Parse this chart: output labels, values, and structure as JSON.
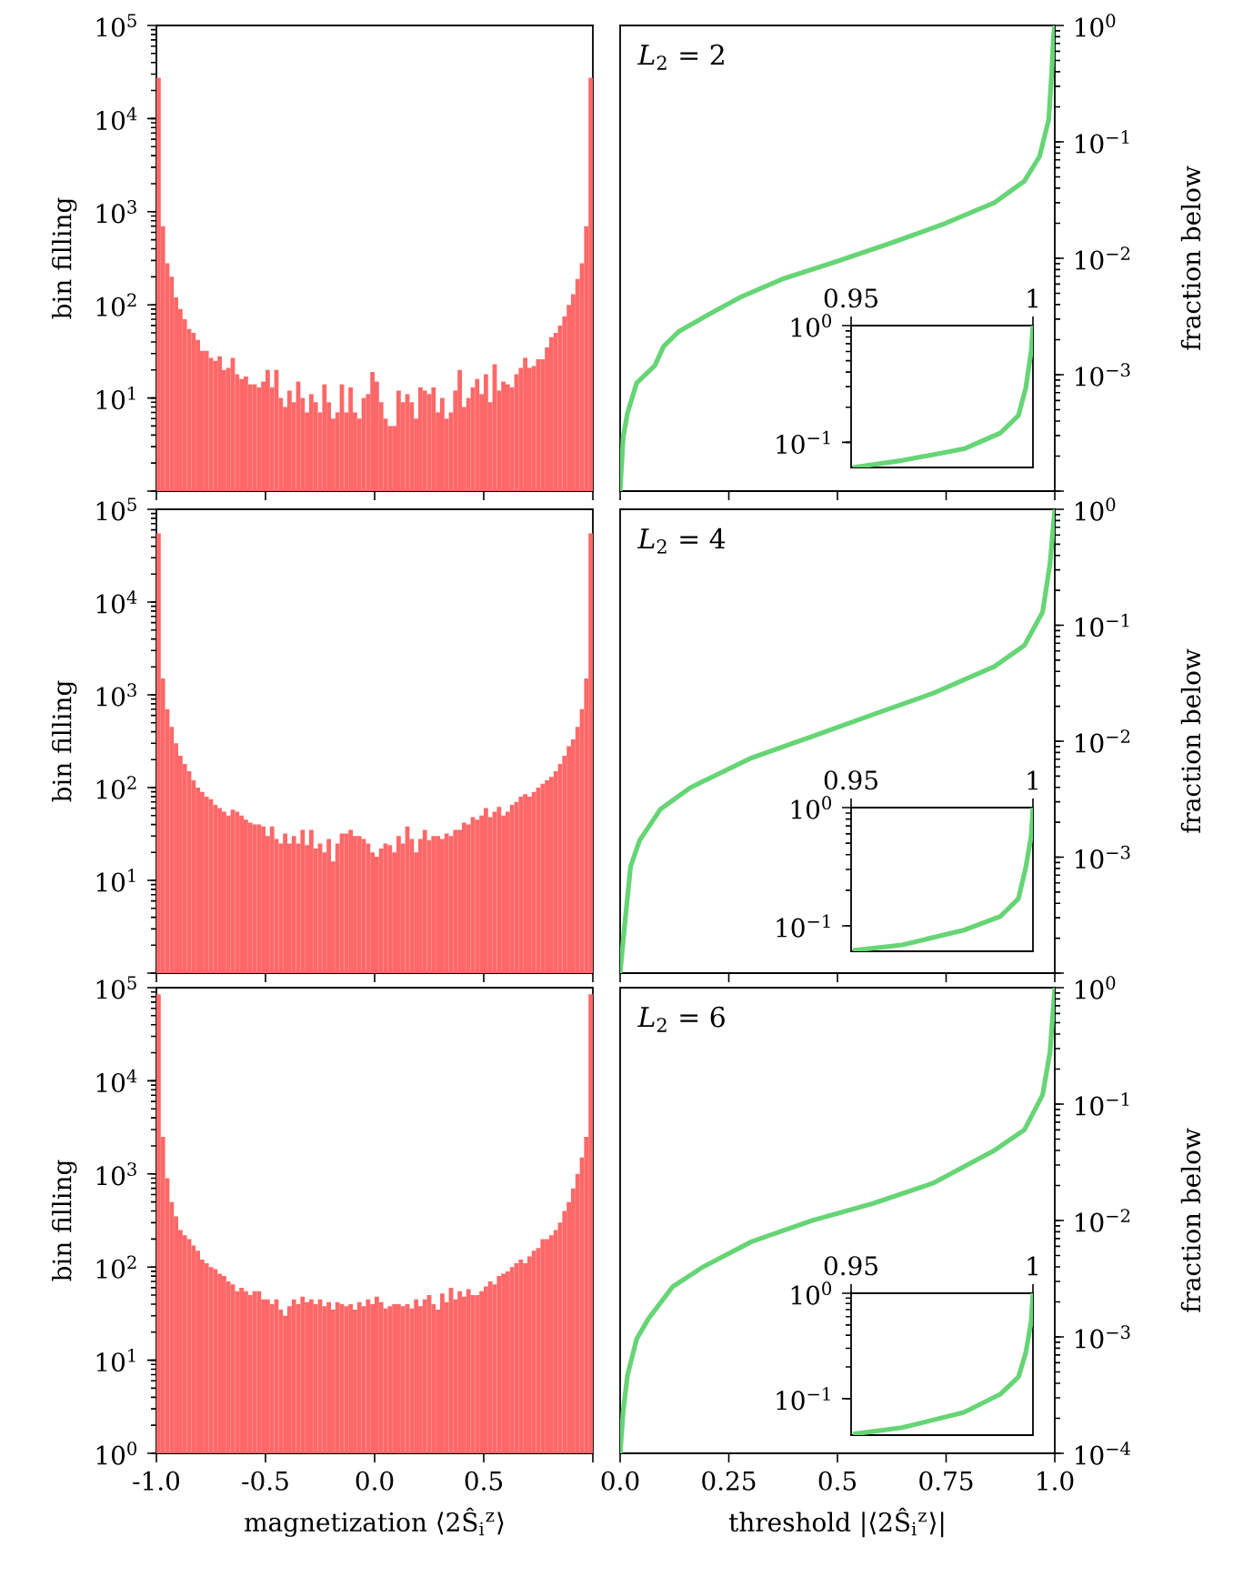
{
  "chart_data": [
    {
      "type": "histogram",
      "ylabel": "bin filling",
      "log": "y",
      "xlim": [
        -1.0,
        1.0
      ],
      "ylim": [
        1,
        100000
      ],
      "tick_labels": "y",
      "color": "#ff6868",
      "xticks": [
        {
          "value": -1.0,
          "label": null
        },
        {
          "value": -0.5,
          "label": null
        },
        {
          "value": 0,
          "label": null
        },
        {
          "value": 0.5,
          "label": null
        },
        {
          "value": 1.0,
          "label": null
        }
      ],
      "yticks": [
        {
          "value": 1,
          "label": null
        },
        {
          "value": 10,
          "label": "10$^{1}$"
        },
        {
          "value": 100,
          "label": "10$^{2}$"
        },
        {
          "value": 1000,
          "label": "10$^{3}$"
        },
        {
          "value": 10000,
          "label": "10$^{4}$"
        },
        {
          "value": 100000,
          "label": "10$^{5}$"
        }
      ],
      "bins": [
        -1.0,
        -0.98,
        -0.96,
        -0.94,
        -0.92,
        -0.9,
        -0.88,
        -0.86,
        -0.84,
        -0.82,
        -0.8,
        -0.78,
        -0.76,
        -0.74,
        -0.72,
        -0.7,
        -0.68,
        -0.66,
        -0.64,
        -0.62,
        -0.6,
        -0.58,
        -0.56,
        -0.54,
        -0.52,
        -0.5,
        -0.48,
        -0.46,
        -0.44,
        -0.42,
        -0.4,
        -0.38,
        -0.36,
        -0.34,
        -0.32,
        -0.3,
        -0.28,
        -0.26,
        -0.24,
        -0.22,
        -0.2,
        -0.18,
        -0.16,
        -0.14,
        -0.12,
        -0.1,
        -0.08,
        -0.06,
        -0.04,
        -0.02,
        0,
        0.02,
        0.04,
        0.06,
        0.08,
        0.1,
        0.12,
        0.14,
        0.16,
        0.18,
        0.2,
        0.22,
        0.24,
        0.26,
        0.28,
        0.3,
        0.32,
        0.34,
        0.36,
        0.38,
        0.4,
        0.42,
        0.44,
        0.46,
        0.48,
        0.5,
        0.52,
        0.54,
        0.56,
        0.58,
        0.6,
        0.62,
        0.64,
        0.66,
        0.68,
        0.7,
        0.72,
        0.74,
        0.76,
        0.78,
        0.8,
        0.82,
        0.84,
        0.86,
        0.88,
        0.9,
        0.92,
        0.94,
        0.96,
        0.98,
        1.0
      ],
      "values": [
        27500,
        700,
        280,
        200,
        120,
        90,
        70,
        55,
        50,
        42,
        32,
        32,
        27,
        25,
        28,
        20,
        21,
        27,
        18,
        16,
        17,
        14,
        14,
        13,
        15,
        20,
        13,
        20,
        10,
        8,
        12,
        9,
        15,
        10,
        7,
        11,
        9,
        7,
        14,
        9,
        6,
        7,
        14,
        7,
        13,
        7,
        6,
        10,
        11,
        19,
        15,
        9,
        6,
        5,
        5,
        12,
        9,
        11,
        9,
        6,
        13,
        12,
        11,
        13,
        7,
        10,
        6,
        7,
        12,
        20,
        8,
        10,
        13,
        16,
        11,
        18,
        9,
        23,
        12,
        15,
        14,
        13,
        18,
        21,
        27,
        21,
        22,
        26,
        26,
        35,
        45,
        50,
        60,
        75,
        100,
        130,
        190,
        280,
        700,
        27500
      ]
    },
    {
      "type": "line",
      "ylabel": "fraction below",
      "log": "y",
      "xlim": [
        0,
        1
      ],
      "ylim": [
        0.0001,
        1
      ],
      "tick_labels": "y",
      "annotations": [
        "*L*$_{2}$ = 2"
      ],
      "xticks": [
        {
          "value": 0,
          "label": null
        },
        {
          "value": 0.25,
          "label": null
        },
        {
          "value": 0.5,
          "label": null
        },
        {
          "value": 0.75,
          "label": null
        },
        {
          "value": 1,
          "label": null
        }
      ],
      "yticks": [
        {
          "value": 0.0001,
          "label": null
        },
        {
          "value": 0.001,
          "label": "10$^{−3}$"
        },
        {
          "value": 0.01,
          "label": "10$^{−2}$"
        },
        {
          "value": 0.1,
          "label": "10$^{−1}$"
        },
        {
          "value": 1,
          "label": "10$^{0}$"
        }
      ],
      "series": [
        {
          "color": "#66d575",
          "x": [
            0,
            0.007,
            0.017,
            0.038,
            0.08,
            0.1,
            0.135,
            0.198,
            0.275,
            0.372,
            0.498,
            0.623,
            0.749,
            0.861,
            0.93,
            0.965,
            0.986,
            0.993,
            0.997,
            1
          ],
          "values": [
            0.0001,
            0.00029,
            0.00047,
            0.00085,
            0.0012,
            0.00175,
            0.00235,
            0.0032,
            0.0046,
            0.0066,
            0.0094,
            0.0135,
            0.02,
            0.03,
            0.046,
            0.075,
            0.155,
            0.4,
            0.8,
            1
          ]
        }
      ]
    },
    {
      "type": "line",
      "log": "y",
      "xlim": [
        0.95,
        1
      ],
      "ylim": [
        0.061,
        1
      ],
      "xticks": [
        0.95,
        1
      ],
      "yticks": [
        {
          "value": 0.1,
          "label": "10$^{−1}$"
        },
        {
          "value": 1,
          "label": "10$^{0}$"
        }
      ],
      "series": [
        {
          "color": "#66d575",
          "x": [
            0.9505,
            0.964,
            0.981,
            0.991,
            0.996,
            0.998,
            0.9995,
            1
          ],
          "values": [
            0.061,
            0.07,
            0.088,
            0.12,
            0.17,
            0.29,
            0.6,
            1
          ]
        }
      ]
    },
    {
      "type": "histogram",
      "ylabel": "bin filling",
      "log": "y",
      "xlim": [
        -1.0,
        1.0
      ],
      "ylim": [
        1,
        100000
      ],
      "tick_labels": "y",
      "color": "#ff6868",
      "xticks": [
        {
          "value": -1.0,
          "label": null
        },
        {
          "value": -0.5,
          "label": null
        },
        {
          "value": 0,
          "label": null
        },
        {
          "value": 0.5,
          "label": null
        },
        {
          "value": 1.0,
          "label": null
        }
      ],
      "yticks": [
        {
          "value": 1,
          "label": null
        },
        {
          "value": 10,
          "label": "10$^{1}$"
        },
        {
          "value": 100,
          "label": "10$^{2}$"
        },
        {
          "value": 1000,
          "label": "10$^{3}$"
        },
        {
          "value": 10000,
          "label": "10$^{4}$"
        },
        {
          "value": 100000,
          "label": "10$^{5}$"
        }
      ],
      "bins": [
        -1.0,
        -0.98,
        -0.96,
        -0.94,
        -0.92,
        -0.9,
        -0.88,
        -0.86,
        -0.84,
        -0.82,
        -0.8,
        -0.78,
        -0.76,
        -0.74,
        -0.72,
        -0.7,
        -0.68,
        -0.66,
        -0.64,
        -0.62,
        -0.6,
        -0.58,
        -0.56,
        -0.54,
        -0.52,
        -0.5,
        -0.48,
        -0.46,
        -0.44,
        -0.42,
        -0.4,
        -0.38,
        -0.36,
        -0.34,
        -0.32,
        -0.3,
        -0.28,
        -0.26,
        -0.24,
        -0.22,
        -0.2,
        -0.18,
        -0.16,
        -0.14,
        -0.12,
        -0.1,
        -0.08,
        -0.06,
        -0.04,
        -0.02,
        0,
        0.02,
        0.04,
        0.06,
        0.08,
        0.1,
        0.12,
        0.14,
        0.16,
        0.18,
        0.2,
        0.22,
        0.24,
        0.26,
        0.28,
        0.3,
        0.32,
        0.34,
        0.36,
        0.38,
        0.4,
        0.42,
        0.44,
        0.46,
        0.48,
        0.5,
        0.52,
        0.54,
        0.56,
        0.58,
        0.6,
        0.62,
        0.64,
        0.66,
        0.68,
        0.7,
        0.72,
        0.74,
        0.76,
        0.78,
        0.8,
        0.82,
        0.84,
        0.86,
        0.88,
        0.9,
        0.92,
        0.94,
        0.96,
        0.98,
        1.0
      ],
      "values": [
        55000,
        1500,
        700,
        450,
        300,
        220,
        180,
        150,
        120,
        100,
        90,
        80,
        75,
        65,
        60,
        55,
        50,
        58,
        55,
        50,
        45,
        42,
        40,
        40,
        38,
        30,
        38,
        28,
        25,
        32,
        25,
        30,
        25,
        35,
        24,
        35,
        22,
        25,
        20,
        28,
        16,
        25,
        32,
        32,
        35,
        30,
        30,
        28,
        25,
        20,
        18,
        22,
        25,
        24,
        20,
        30,
        25,
        38,
        28,
        20,
        28,
        35,
        27,
        30,
        30,
        28,
        32,
        30,
        35,
        35,
        42,
        40,
        48,
        45,
        50,
        60,
        48,
        55,
        62,
        50,
        55,
        65,
        70,
        80,
        85,
        80,
        90,
        100,
        110,
        120,
        130,
        150,
        180,
        220,
        280,
        330,
        450,
        700,
        1500,
        55000
      ]
    },
    {
      "type": "line",
      "ylabel": "fraction below",
      "log": "y",
      "xlim": [
        0,
        1
      ],
      "ylim": [
        0.0001,
        1
      ],
      "tick_labels": "y",
      "annotations": [
        "*L*$_{2}$ = 4"
      ],
      "xticks": [
        {
          "value": 0,
          "label": null
        },
        {
          "value": 0.25,
          "label": null
        },
        {
          "value": 0.5,
          "label": null
        },
        {
          "value": 0.75,
          "label": null
        },
        {
          "value": 1,
          "label": null
        }
      ],
      "yticks": [
        {
          "value": 0.0001,
          "label": null
        },
        {
          "value": 0.001,
          "label": "10$^{−3}$"
        },
        {
          "value": 0.01,
          "label": "10$^{−2}$"
        },
        {
          "value": 0.1,
          "label": "10$^{−1}$"
        },
        {
          "value": 1,
          "label": "10$^{0}$"
        }
      ],
      "series": [
        {
          "color": "#66d575",
          "x": [
            0,
            0.01,
            0.024,
            0.045,
            0.093,
            0.163,
            0.303,
            0.442,
            0.582,
            0.721,
            0.861,
            0.93,
            0.972,
            0.989,
            1
          ],
          "values": [
            0.0001,
            0.00025,
            0.00083,
            0.0014,
            0.0026,
            0.004,
            0.0072,
            0.011,
            0.017,
            0.026,
            0.044,
            0.067,
            0.13,
            0.34,
            1
          ]
        }
      ]
    },
    {
      "type": "line",
      "log": "y",
      "xlim": [
        0.95,
        1
      ],
      "ylim": [
        0.061,
        1
      ],
      "xticks": [
        0.95,
        1
      ],
      "yticks": [
        {
          "value": 0.1,
          "label": "10$^{−1}$"
        },
        {
          "value": 1,
          "label": "10$^{0}$"
        }
      ],
      "series": [
        {
          "color": "#66d575",
          "x": [
            0.9505,
            0.964,
            0.981,
            0.991,
            0.996,
            0.998,
            0.9995,
            1
          ],
          "values": [
            0.062,
            0.069,
            0.092,
            0.12,
            0.17,
            0.31,
            0.57,
            1
          ]
        }
      ]
    },
    {
      "type": "histogram",
      "ylabel": "bin filling",
      "xlabel": "magnetization ⟨2Ŝ$_{i}$$^{z}$⟩",
      "log": "y",
      "xlim": [
        -1.0,
        1.0
      ],
      "ylim": [
        1,
        100000
      ],
      "color": "#ff6868",
      "xticks": [
        {
          "value": -1.0,
          "label": "-1.0"
        },
        -0.5,
        {
          "value": 0,
          "label": "0.0"
        },
        0.5,
        {
          "value": 1.0,
          "label": null
        }
      ],
      "yticks": [
        {
          "value": 1,
          "label": "10$^{0}$"
        },
        {
          "value": 10,
          "label": "10$^{1}$"
        },
        {
          "value": 100,
          "label": "10$^{2}$"
        },
        {
          "value": 1000,
          "label": "10$^{3}$"
        },
        {
          "value": 10000,
          "label": "10$^{4}$"
        },
        {
          "value": 100000,
          "label": "10$^{5}$"
        }
      ],
      "bins": [
        -1.0,
        -0.98,
        -0.96,
        -0.94,
        -0.92,
        -0.9,
        -0.88,
        -0.86,
        -0.84,
        -0.82,
        -0.8,
        -0.78,
        -0.76,
        -0.74,
        -0.72,
        -0.7,
        -0.68,
        -0.66,
        -0.64,
        -0.62,
        -0.6,
        -0.58,
        -0.56,
        -0.54,
        -0.52,
        -0.5,
        -0.48,
        -0.46,
        -0.44,
        -0.42,
        -0.4,
        -0.38,
        -0.36,
        -0.34,
        -0.32,
        -0.3,
        -0.28,
        -0.26,
        -0.24,
        -0.22,
        -0.2,
        -0.18,
        -0.16,
        -0.14,
        -0.12,
        -0.1,
        -0.08,
        -0.06,
        -0.04,
        -0.02,
        0,
        0.02,
        0.04,
        0.06,
        0.08,
        0.1,
        0.12,
        0.14,
        0.16,
        0.18,
        0.2,
        0.22,
        0.24,
        0.26,
        0.28,
        0.3,
        0.32,
        0.34,
        0.36,
        0.38,
        0.4,
        0.42,
        0.44,
        0.46,
        0.48,
        0.5,
        0.52,
        0.54,
        0.56,
        0.58,
        0.6,
        0.62,
        0.64,
        0.66,
        0.68,
        0.7,
        0.72,
        0.74,
        0.76,
        0.78,
        0.8,
        0.82,
        0.84,
        0.86,
        0.88,
        0.9,
        0.92,
        0.94,
        0.96,
        0.98,
        1.0
      ],
      "values": [
        85000,
        2500,
        900,
        500,
        350,
        250,
        220,
        200,
        170,
        150,
        120,
        110,
        100,
        95,
        85,
        80,
        70,
        65,
        55,
        60,
        55,
        50,
        55,
        55,
        45,
        45,
        40,
        45,
        35,
        30,
        38,
        45,
        40,
        48,
        42,
        45,
        40,
        45,
        38,
        42,
        35,
        42,
        40,
        38,
        40,
        35,
        42,
        38,
        45,
        40,
        48,
        42,
        36,
        38,
        40,
        40,
        38,
        40,
        36,
        45,
        38,
        45,
        50,
        40,
        35,
        52,
        42,
        60,
        45,
        55,
        48,
        58,
        50,
        50,
        55,
        62,
        70,
        65,
        80,
        85,
        90,
        100,
        110,
        120,
        110,
        130,
        150,
        160,
        200,
        200,
        220,
        250,
        300,
        400,
        500,
        700,
        1000,
        1500,
        2500,
        85000
      ]
    },
    {
      "type": "line",
      "ylabel": "fraction below",
      "xlabel": "threshold |⟨2Ŝ$_{i}$$^{z}$⟩|",
      "log": "y",
      "xlim": [
        0,
        1
      ],
      "ylim": [
        0.0001,
        1
      ],
      "annotations": [
        "*L*$_{2}$ = 6"
      ],
      "xticks": [
        {
          "value": 0,
          "label": "0.0"
        },
        0.25,
        0.5,
        0.75,
        {
          "value": 1,
          "label": "1.0"
        }
      ],
      "yticks": [
        {
          "value": 0.0001,
          "label": "10$^{−4}$"
        },
        {
          "value": 0.001,
          "label": "10$^{−3}$"
        },
        {
          "value": 0.01,
          "label": "10$^{−2}$"
        },
        {
          "value": 0.1,
          "label": "10$^{−1}$"
        },
        {
          "value": 1,
          "label": "10$^{0}$"
        }
      ],
      "series": [
        {
          "color": "#66d575",
          "x": [
            0,
            0.007,
            0.017,
            0.038,
            0.066,
            0.121,
            0.191,
            0.303,
            0.442,
            0.582,
            0.721,
            0.861,
            0.93,
            0.972,
            0.989,
            1
          ],
          "values": [
            0.0001,
            0.00023,
            0.00047,
            0.00096,
            0.00145,
            0.0027,
            0.004,
            0.0066,
            0.01,
            0.014,
            0.021,
            0.04,
            0.06,
            0.12,
            0.28,
            1
          ]
        }
      ]
    },
    {
      "type": "line",
      "log": "y",
      "xlim": [
        0.95,
        1
      ],
      "ylim": [
        0.045,
        1
      ],
      "xticks": [
        0.95,
        1
      ],
      "yticks": [
        {
          "value": 0.1,
          "label": "10$^{−1}$"
        },
        {
          "value": 1,
          "label": "10$^{0}$"
        }
      ],
      "series": [
        {
          "color": "#66d575",
          "x": [
            0.9505,
            0.964,
            0.981,
            0.991,
            0.996,
            0.998,
            0.9995,
            1
          ],
          "values": [
            0.046,
            0.053,
            0.074,
            0.11,
            0.16,
            0.27,
            0.54,
            1
          ]
        }
      ]
    }
  ]
}
